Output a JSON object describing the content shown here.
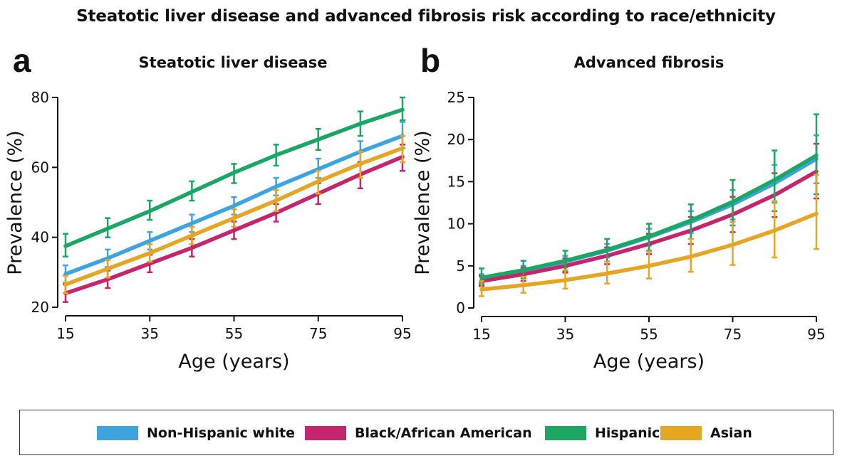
{
  "figure_title": "Steatotic liver disease and advanced fibrosis risk according to race/ethnicity",
  "colors": {
    "Non-Hispanic white": "#3ea4e0",
    "Black/African American": "#c4256d",
    "Hispanic": "#1ba664",
    "Asian": "#e5a624"
  },
  "legend": [
    {
      "name": "Non-Hispanic white",
      "color": "#3ea4e0"
    },
    {
      "name": "Black/African American",
      "color": "#c4256d"
    },
    {
      "name": "Hispanic",
      "color": "#1ba664"
    },
    {
      "name": "Asian",
      "color": "#e5a624"
    }
  ],
  "chart_data": [
    {
      "panel": "a",
      "type": "line",
      "title": "Steatotic liver disease",
      "xlabel": "Age (years)",
      "ylabel": "Prevalence (%)",
      "xlim": [
        15,
        95
      ],
      "ylim": [
        20,
        80
      ],
      "xticks": [
        15,
        35,
        55,
        75,
        95
      ],
      "yticks": [
        20,
        40,
        60,
        80
      ],
      "x": [
        15,
        25,
        35,
        45,
        55,
        65,
        75,
        85,
        95
      ],
      "series": [
        {
          "name": "Non-Hispanic white",
          "values": [
            29.5,
            34,
            39,
            44,
            49,
            54.5,
            59.5,
            64.5,
            69
          ],
          "lower": [
            27,
            31.5,
            36.5,
            41.5,
            46.5,
            52,
            57,
            61.5,
            65.5
          ],
          "upper": [
            32,
            36.5,
            41.5,
            46.5,
            51.5,
            57,
            62.5,
            67.5,
            73
          ]
        },
        {
          "name": "Black/African American",
          "values": [
            24,
            28,
            32.5,
            37,
            42,
            47,
            52.5,
            58,
            63
          ],
          "lower": [
            21.5,
            25.5,
            30,
            34.5,
            39.5,
            44.5,
            49.5,
            54,
            59
          ],
          "upper": [
            26.5,
            30.5,
            35,
            39.5,
            44.5,
            49.5,
            55.5,
            61.5,
            66.5
          ]
        },
        {
          "name": "Hispanic",
          "values": [
            37.5,
            42.5,
            47.5,
            53,
            58.5,
            63.5,
            68,
            72.5,
            76.5
          ],
          "lower": [
            34.5,
            40,
            45,
            50.5,
            55.5,
            60.5,
            65,
            69,
            73.5
          ],
          "upper": [
            41,
            45.5,
            50.5,
            56,
            61,
            66.5,
            71,
            76,
            80
          ]
        },
        {
          "name": "Asian",
          "values": [
            26.5,
            31,
            35.5,
            40.5,
            45.5,
            50.5,
            56,
            61,
            65.5
          ],
          "lower": [
            24,
            28.5,
            33,
            38,
            43,
            47.5,
            52.5,
            57,
            61.5
          ],
          "upper": [
            29,
            33.5,
            38,
            43,
            48,
            53.5,
            59,
            64.5,
            69
          ]
        }
      ]
    },
    {
      "panel": "b",
      "type": "line",
      "title": "Advanced fibrosis",
      "xlabel": "Age (years)",
      "ylabel": "Prevalence (%)",
      "xlim": [
        15,
        95
      ],
      "ylim": [
        0,
        25
      ],
      "xticks": [
        15,
        35,
        55,
        75,
        95
      ],
      "yticks": [
        0,
        5,
        10,
        15,
        20,
        25
      ],
      "x": [
        15,
        25,
        35,
        45,
        55,
        65,
        75,
        85,
        95
      ],
      "series": [
        {
          "name": "Non-Hispanic white",
          "values": [
            3.5,
            4.4,
            5.5,
            6.8,
            8.4,
            10.2,
            12.3,
            14.8,
            17.7
          ],
          "lower": [
            3.0,
            3.8,
            4.8,
            6.0,
            7.4,
            8.9,
            10.5,
            12.5,
            14.8
          ],
          "upper": [
            4.0,
            5.0,
            6.2,
            7.6,
            9.4,
            11.5,
            14.0,
            17.0,
            20.5
          ]
        },
        {
          "name": "Black/African American",
          "values": [
            3.2,
            4.0,
            5.0,
            6.2,
            7.6,
            9.2,
            11.1,
            13.4,
            16.2
          ],
          "lower": [
            2.6,
            3.2,
            4.2,
            5.2,
            6.4,
            7.6,
            9.0,
            10.8,
            13.0
          ],
          "upper": [
            3.8,
            4.8,
            5.9,
            7.2,
            8.8,
            10.8,
            13.2,
            16.0,
            19.5
          ]
        },
        {
          "name": "Hispanic",
          "values": [
            3.6,
            4.5,
            5.6,
            6.9,
            8.5,
            10.4,
            12.6,
            15.2,
            18.1
          ],
          "lower": [
            2.8,
            3.5,
            4.4,
            5.5,
            6.8,
            8.2,
            9.8,
            11.5,
            13.5
          ],
          "upper": [
            4.7,
            5.6,
            6.8,
            8.2,
            10.0,
            12.3,
            15.2,
            18.7,
            23.0
          ]
        },
        {
          "name": "Asian",
          "values": [
            2.2,
            2.7,
            3.3,
            4.1,
            5.0,
            6.1,
            7.5,
            9.2,
            11.2
          ],
          "lower": [
            1.4,
            1.8,
            2.3,
            2.9,
            3.5,
            4.3,
            5.1,
            6.0,
            7.0
          ],
          "upper": [
            3.2,
            3.7,
            4.5,
            5.5,
            6.7,
            8.2,
            10.2,
            12.7,
            15.8
          ]
        }
      ]
    }
  ]
}
